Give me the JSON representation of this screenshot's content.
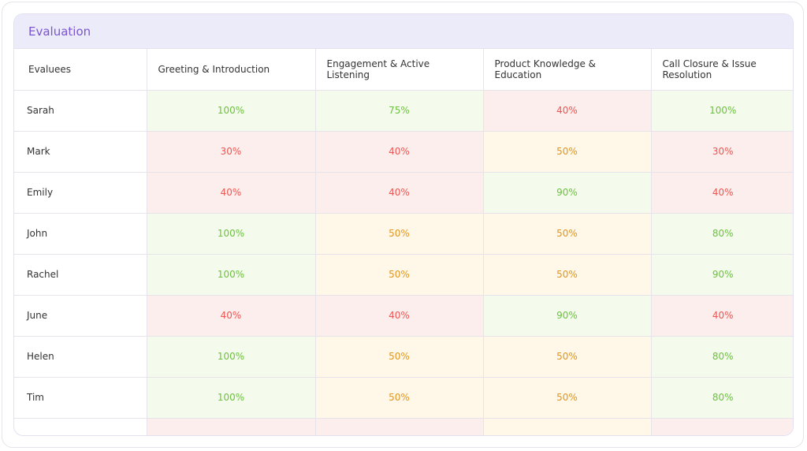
{
  "title": "Evaluation",
  "columns": [
    "Evaluees",
    "Greeting & Introduction",
    "Engagement & Active Listening",
    "Product Knowledge & Education",
    "Call Closure & Issue Resolution"
  ],
  "rows": [
    {
      "name": "Sarah",
      "scores": [
        "100%",
        "75%",
        "40%",
        "100%"
      ]
    },
    {
      "name": "Mark",
      "scores": [
        "30%",
        "40%",
        "50%",
        "30%"
      ]
    },
    {
      "name": "Emily",
      "scores": [
        "40%",
        "40%",
        "90%",
        "40%"
      ]
    },
    {
      "name": "John",
      "scores": [
        "100%",
        "50%",
        "50%",
        "80%"
      ]
    },
    {
      "name": "Rachel",
      "scores": [
        "100%",
        "50%",
        "50%",
        "90%"
      ]
    },
    {
      "name": "June",
      "scores": [
        "40%",
        "40%",
        "90%",
        "40%"
      ]
    },
    {
      "name": "Helen",
      "scores": [
        "100%",
        "50%",
        "50%",
        "80%"
      ]
    },
    {
      "name": "Tim",
      "scores": [
        "100%",
        "50%",
        "50%",
        "80%"
      ]
    }
  ],
  "colors": {
    "good_text": "#6cc13f",
    "good_bg": "#f4fbec",
    "mid_text": "#e0951f",
    "mid_bg": "#fff8e8",
    "bad_text": "#ec5551",
    "bad_bg": "#fdeeee",
    "accent": "#7a55cf"
  }
}
